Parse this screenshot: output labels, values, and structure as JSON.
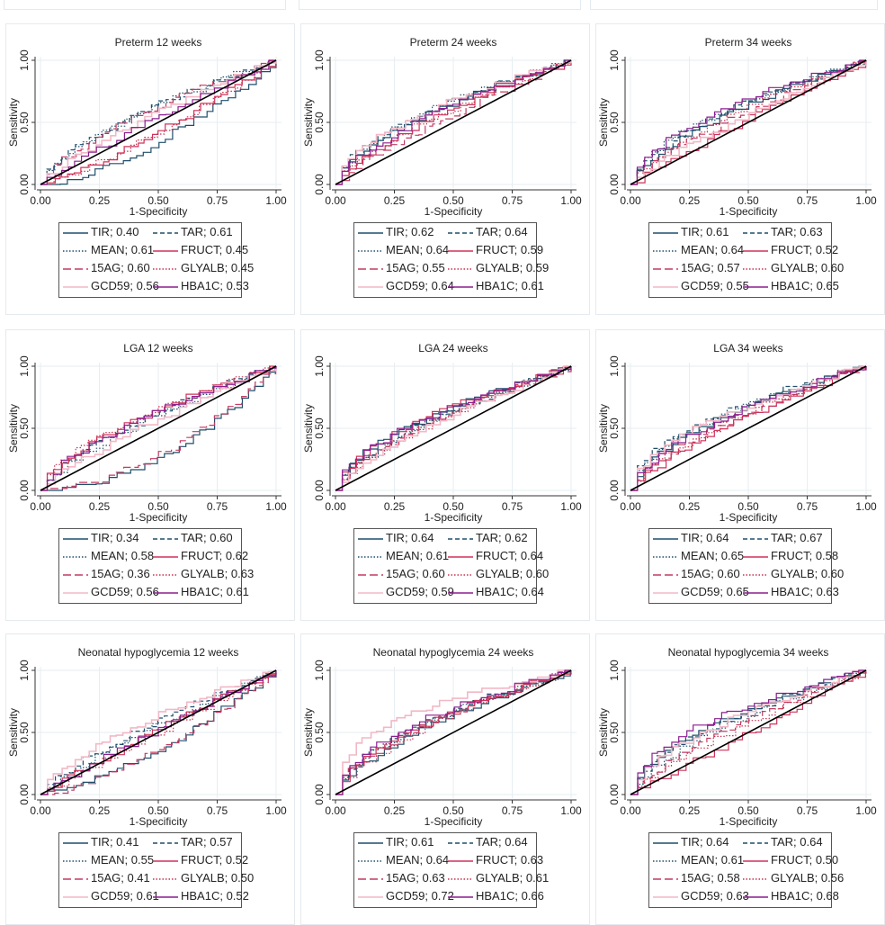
{
  "figure": {
    "series_style": {
      "TIR": {
        "color": "#1f4e6b",
        "dash": "solid"
      },
      "TAR": {
        "color": "#1f4e6b",
        "dash": "dashed"
      },
      "MEAN": {
        "color": "#1f4e6b",
        "dash": "dotted"
      },
      "FRUCT": {
        "color": "#d0325a",
        "dash": "solid"
      },
      "15AG": {
        "color": "#c23b62",
        "dash": "longdash"
      },
      "GLYALB": {
        "color": "#c8304f",
        "dash": "dotted"
      },
      "GCD59": {
        "color": "#f2b8c6",
        "dash": "solid"
      },
      "HBA1C": {
        "color": "#8b1f8e",
        "dash": "solid"
      }
    },
    "reference_line_color": "#000000"
  },
  "chart_data": [
    {
      "type": "line",
      "title": "Preterm 12 weeks",
      "xlabel": "1-Specificity",
      "ylabel": "Sensitivity",
      "xlim": [
        0,
        1
      ],
      "ylim": [
        0,
        1
      ],
      "xticks": [
        "0.00",
        "0.25",
        "0.50",
        "0.75",
        "1.00"
      ],
      "yticks": [
        "0.00",
        "0.50",
        "1.00"
      ],
      "grid": true,
      "legend_position": "bottom",
      "legend": [
        {
          "name": "TIR",
          "auc": "0.40"
        },
        {
          "name": "TAR",
          "auc": "0.61"
        },
        {
          "name": "MEAN",
          "auc": "0.61"
        },
        {
          "name": "FRUCT",
          "auc": "0.45"
        },
        {
          "name": "15AG",
          "auc": "0.60"
        },
        {
          "name": "GLYALB",
          "auc": "0.45"
        },
        {
          "name": "GCD59",
          "auc": "0.56"
        },
        {
          "name": "HBA1C",
          "auc": "0.53"
        }
      ]
    },
    {
      "type": "line",
      "title": "Preterm 24 weeks",
      "xlabel": "1-Specificity",
      "ylabel": "Sensitivity",
      "xlim": [
        0,
        1
      ],
      "ylim": [
        0,
        1
      ],
      "xticks": [
        "0.00",
        "0.25",
        "0.50",
        "0.75",
        "1.00"
      ],
      "yticks": [
        "0.00",
        "0.50",
        "1.00"
      ],
      "grid": true,
      "legend_position": "bottom",
      "legend": [
        {
          "name": "TIR",
          "auc": "0.62"
        },
        {
          "name": "TAR",
          "auc": "0.64"
        },
        {
          "name": "MEAN",
          "auc": "0.64"
        },
        {
          "name": "FRUCT",
          "auc": "0.59"
        },
        {
          "name": "15AG",
          "auc": "0.55"
        },
        {
          "name": "GLYALB",
          "auc": "0.59"
        },
        {
          "name": "GCD59",
          "auc": "0.64"
        },
        {
          "name": "HBA1C",
          "auc": "0.61"
        }
      ]
    },
    {
      "type": "line",
      "title": "Preterm 34 weeks",
      "xlabel": "1-Specificity",
      "ylabel": "Sensitivity",
      "xlim": [
        0,
        1
      ],
      "ylim": [
        0,
        1
      ],
      "xticks": [
        "0.00",
        "0.25",
        "0.50",
        "0.75",
        "1.00"
      ],
      "yticks": [
        "0.00",
        "0.50",
        "1.00"
      ],
      "grid": true,
      "legend_position": "bottom",
      "legend": [
        {
          "name": "TIR",
          "auc": "0.61"
        },
        {
          "name": "TAR",
          "auc": "0.63"
        },
        {
          "name": "MEAN",
          "auc": "0.64"
        },
        {
          "name": "FRUCT",
          "auc": "0.52"
        },
        {
          "name": "15AG",
          "auc": "0.57"
        },
        {
          "name": "GLYALB",
          "auc": "0.60"
        },
        {
          "name": "GCD59",
          "auc": "0.55"
        },
        {
          "name": "HBA1C",
          "auc": "0.65"
        }
      ]
    },
    {
      "type": "line",
      "title": "LGA 12 weeks",
      "xlabel": "1-Specificity",
      "ylabel": "Sensitivity",
      "xlim": [
        0,
        1
      ],
      "ylim": [
        0,
        1
      ],
      "xticks": [
        "0.00",
        "0.25",
        "0.50",
        "0.75",
        "1.00"
      ],
      "yticks": [
        "0.00",
        "0.50",
        "1.00"
      ],
      "grid": true,
      "legend_position": "bottom",
      "legend": [
        {
          "name": "TIR",
          "auc": "0.34"
        },
        {
          "name": "TAR",
          "auc": "0.60"
        },
        {
          "name": "MEAN",
          "auc": "0.58"
        },
        {
          "name": "FRUCT",
          "auc": "0.62"
        },
        {
          "name": "15AG",
          "auc": "0.36"
        },
        {
          "name": "GLYALB",
          "auc": "0.63"
        },
        {
          "name": "GCD59",
          "auc": "0.56"
        },
        {
          "name": "HBA1C",
          "auc": "0.61"
        }
      ]
    },
    {
      "type": "line",
      "title": "LGA 24 weeks",
      "xlabel": "1-Specificity",
      "ylabel": "Sensitivity",
      "xlim": [
        0,
        1
      ],
      "ylim": [
        0,
        1
      ],
      "xticks": [
        "0.00",
        "0.25",
        "0.50",
        "0.75",
        "1.00"
      ],
      "yticks": [
        "0.00",
        "0.50",
        "1.00"
      ],
      "grid": true,
      "legend_position": "bottom",
      "legend": [
        {
          "name": "TIR",
          "auc": "0.64"
        },
        {
          "name": "TAR",
          "auc": "0.62"
        },
        {
          "name": "MEAN",
          "auc": "0.61"
        },
        {
          "name": "FRUCT",
          "auc": "0.64"
        },
        {
          "name": "15AG",
          "auc": "0.60"
        },
        {
          "name": "GLYALB",
          "auc": "0.60"
        },
        {
          "name": "GCD59",
          "auc": "0.59"
        },
        {
          "name": "HBA1C",
          "auc": "0.64"
        }
      ]
    },
    {
      "type": "line",
      "title": "LGA 34 weeks",
      "xlabel": "1-Specificity",
      "ylabel": "Sensitivity",
      "xlim": [
        0,
        1
      ],
      "ylim": [
        0,
        1
      ],
      "xticks": [
        "0.00",
        "0.25",
        "0.50",
        "0.75",
        "1.00"
      ],
      "yticks": [
        "0.00",
        "0.50",
        "1.00"
      ],
      "grid": true,
      "legend_position": "bottom",
      "legend": [
        {
          "name": "TIR",
          "auc": "0.64"
        },
        {
          "name": "TAR",
          "auc": "0.67"
        },
        {
          "name": "MEAN",
          "auc": "0.65"
        },
        {
          "name": "FRUCT",
          "auc": "0.58"
        },
        {
          "name": "15AG",
          "auc": "0.60"
        },
        {
          "name": "GLYALB",
          "auc": "0.60"
        },
        {
          "name": "GCD59",
          "auc": "0.65"
        },
        {
          "name": "HBA1C",
          "auc": "0.63"
        }
      ]
    },
    {
      "type": "line",
      "title": "Neonatal hypoglycemia 12 weeks",
      "xlabel": "1-Specificity",
      "ylabel": "Sensitivity",
      "xlim": [
        0,
        1
      ],
      "ylim": [
        0,
        1
      ],
      "xticks": [
        "0.00",
        "0.25",
        "0.50",
        "0.75",
        "1.00"
      ],
      "yticks": [
        "0.00",
        "0.50",
        "1.00"
      ],
      "grid": true,
      "legend_position": "bottom",
      "legend": [
        {
          "name": "TIR",
          "auc": "0.41"
        },
        {
          "name": "TAR",
          "auc": "0.57"
        },
        {
          "name": "MEAN",
          "auc": "0.55"
        },
        {
          "name": "FRUCT",
          "auc": "0.52"
        },
        {
          "name": "15AG",
          "auc": "0.41"
        },
        {
          "name": "GLYALB",
          "auc": "0.50"
        },
        {
          "name": "GCD59",
          "auc": "0.61"
        },
        {
          "name": "HBA1C",
          "auc": "0.52"
        }
      ]
    },
    {
      "type": "line",
      "title": "Neonatal hypoglycemia 24 weeks",
      "xlabel": "1-Specificity",
      "ylabel": "Sensitivity",
      "xlim": [
        0,
        1
      ],
      "ylim": [
        0,
        1
      ],
      "xticks": [
        "0.00",
        "0.25",
        "0.50",
        "0.75",
        "1.00"
      ],
      "yticks": [
        "0.00",
        "0.50",
        "1.00"
      ],
      "grid": true,
      "legend_position": "bottom",
      "legend": [
        {
          "name": "TIR",
          "auc": "0.61"
        },
        {
          "name": "TAR",
          "auc": "0.64"
        },
        {
          "name": "MEAN",
          "auc": "0.64"
        },
        {
          "name": "FRUCT",
          "auc": "0.63"
        },
        {
          "name": "15AG",
          "auc": "0.63"
        },
        {
          "name": "GLYALB",
          "auc": "0.61"
        },
        {
          "name": "GCD59",
          "auc": "0.72"
        },
        {
          "name": "HBA1C",
          "auc": "0.66"
        }
      ]
    },
    {
      "type": "line",
      "title": "Neonatal hypoglycemia 34 weeks",
      "xlabel": "1-Specificity",
      "ylabel": "Sensitivity",
      "xlim": [
        0,
        1
      ],
      "ylim": [
        0,
        1
      ],
      "xticks": [
        "0.00",
        "0.25",
        "0.50",
        "0.75",
        "1.00"
      ],
      "yticks": [
        "0.00",
        "0.50",
        "1.00"
      ],
      "grid": true,
      "legend_position": "bottom",
      "legend": [
        {
          "name": "TIR",
          "auc": "0.64"
        },
        {
          "name": "TAR",
          "auc": "0.64"
        },
        {
          "name": "MEAN",
          "auc": "0.61"
        },
        {
          "name": "FRUCT",
          "auc": "0.50"
        },
        {
          "name": "15AG",
          "auc": "0.58"
        },
        {
          "name": "GLYALB",
          "auc": "0.56"
        },
        {
          "name": "GCD59",
          "auc": "0.63"
        },
        {
          "name": "HBA1C",
          "auc": "0.68"
        }
      ]
    }
  ]
}
